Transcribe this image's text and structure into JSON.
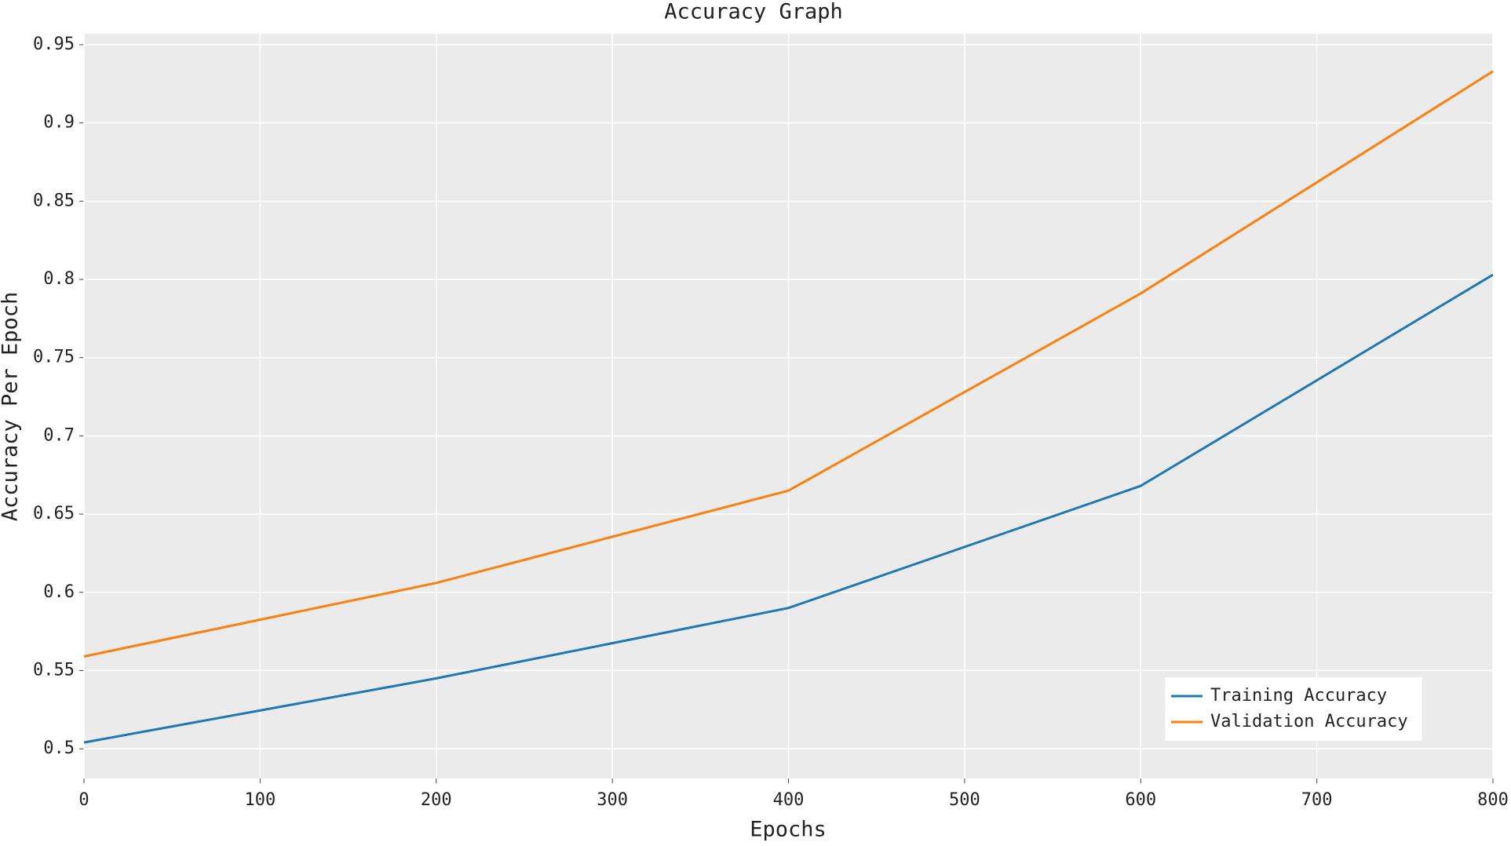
{
  "chart_data": {
    "type": "line",
    "title": "Accuracy Graph",
    "x_label": "Epochs",
    "y_label": "Accuracy Per Epoch",
    "x": [
      0,
      200,
      400,
      600,
      800
    ],
    "series": [
      {
        "name": "Training Accuracy",
        "color": "#1f77b4",
        "values": [
          0.504,
          0.545,
          0.59,
          0.668,
          0.803
        ]
      },
      {
        "name": "Validation Accuracy",
        "color": "#ff7f0e",
        "values": [
          0.559,
          0.606,
          0.665,
          0.791,
          0.933
        ]
      }
    ],
    "xlim": [
      0,
      800
    ],
    "xticks": [
      0,
      100,
      200,
      300,
      400,
      500,
      600,
      700,
      800
    ],
    "ylim": [
      0.481,
      0.957
    ],
    "yticks": [
      0.5,
      0.55,
      0.6,
      0.65,
      0.7,
      0.75,
      0.8,
      0.85,
      0.9,
      0.95
    ],
    "grid": true,
    "legend": "lower right"
  }
}
